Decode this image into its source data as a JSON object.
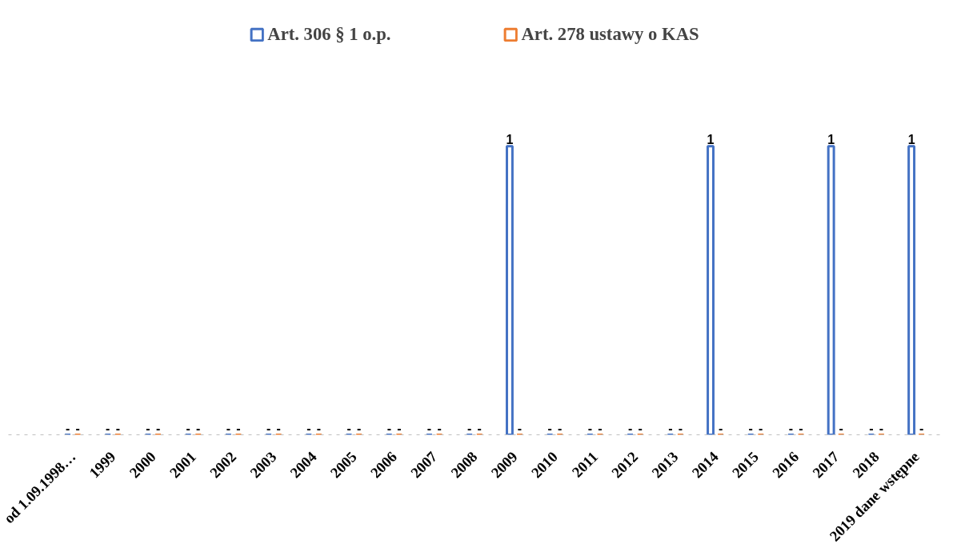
{
  "chart_data": {
    "type": "bar",
    "legend": "top",
    "grid": false,
    "tick_labels": "x",
    "categories": [
      "od 1.09.1998…",
      "1999",
      "2000",
      "2001",
      "2002",
      "2003",
      "2004",
      "2005",
      "2006",
      "2007",
      "2008",
      "2009",
      "2010",
      "2011",
      "2012",
      "2013",
      "2014",
      "2015",
      "2016",
      "2017",
      "2018",
      "2019 dane wstępne"
    ],
    "series": [
      {
        "name": "Art. 306 § 1 o.p.",
        "color": "#4472c4",
        "values": [
          0,
          0,
          0,
          0,
          0,
          0,
          0,
          0,
          0,
          0,
          0,
          1,
          0,
          0,
          0,
          0,
          1,
          0,
          0,
          1,
          0,
          1
        ],
        "value_labels": [
          "-",
          "-",
          "-",
          "-",
          "-",
          "-",
          "-",
          "-",
          "-",
          "-",
          "-",
          "1",
          "-",
          "-",
          "-",
          "-",
          "1",
          "-",
          "-",
          "1",
          "-",
          "1"
        ]
      },
      {
        "name": "Art. 278 ustawy o KAS",
        "color": "#ed7d31",
        "values": [
          0,
          0,
          0,
          0,
          0,
          0,
          0,
          0,
          0,
          0,
          0,
          0,
          0,
          0,
          0,
          0,
          0,
          0,
          0,
          0,
          0,
          0
        ],
        "value_labels": [
          "-",
          "-",
          "-",
          "-",
          "-",
          "-",
          "-",
          "-",
          "-",
          "-",
          "-",
          "-",
          "-",
          "-",
          "-",
          "-",
          "-",
          "-",
          "-",
          "-",
          "-",
          "-"
        ]
      }
    ]
  }
}
